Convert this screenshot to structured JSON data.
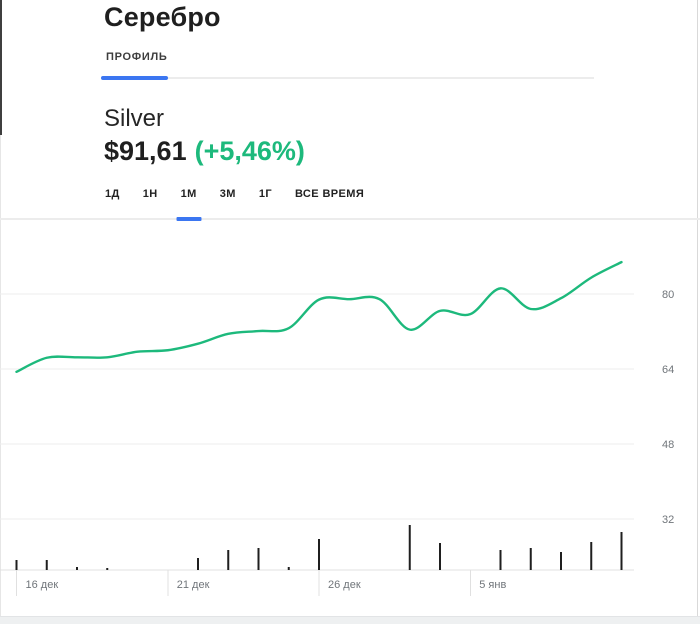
{
  "header": {
    "title": "Серебро",
    "profile_tab": {
      "label": "ПРОФИЛЬ",
      "active": true
    }
  },
  "instrument": {
    "name": "Silver",
    "price": "$91,61",
    "change": "(+5,46%)",
    "change_direction": "up"
  },
  "range_tabs": {
    "active_index": 2,
    "items": [
      {
        "label": "1Д",
        "active": false
      },
      {
        "label": "1Н",
        "active": false
      },
      {
        "label": "1М",
        "active": true
      },
      {
        "label": "3М",
        "active": false
      },
      {
        "label": "1Г",
        "active": false
      },
      {
        "label": "ВСЕ ВРЕМЯ",
        "active": false
      }
    ]
  },
  "colors": {
    "accent_blue": "#3b76f1",
    "positive_green": "#1db97c",
    "text_primary": "#1f1f1f",
    "text_secondary": "#70757a",
    "grid_line": "#ededed",
    "axis_line": "#e0e0e0",
    "volume_bar": "#1f1f1f"
  },
  "chart_data": {
    "type": "line",
    "title": "Silver price, 1M range",
    "currency": "USD",
    "grid": true,
    "legend": "none",
    "y_axis": {
      "side": "right",
      "ticks": [
        80,
        64,
        48,
        32
      ],
      "range_approx": [
        21,
        95
      ]
    },
    "x_axis": {
      "tick_labels": [
        "16 дек",
        "21 дек",
        "26 дек",
        "5 янв"
      ],
      "tick_point_indices": [
        0,
        5,
        10,
        15
      ]
    },
    "series": [
      {
        "name": "price",
        "color": "#1db97c",
        "values": [
          63.4,
          66.4,
          66.5,
          66.5,
          67.7,
          68.0,
          69.4,
          71.5,
          72.1,
          72.7,
          78.8,
          78.9,
          78.9,
          72.4,
          76.4,
          75.7,
          81.2,
          76.8,
          79.1,
          83.5,
          86.8
        ]
      },
      {
        "name": "volume",
        "color": "#1f1f1f",
        "values": [
          10,
          10,
          3,
          2,
          0,
          0,
          12,
          20,
          22,
          3,
          31,
          0,
          0,
          45,
          27,
          0,
          20,
          22,
          18,
          28,
          38
        ]
      }
    ]
  }
}
